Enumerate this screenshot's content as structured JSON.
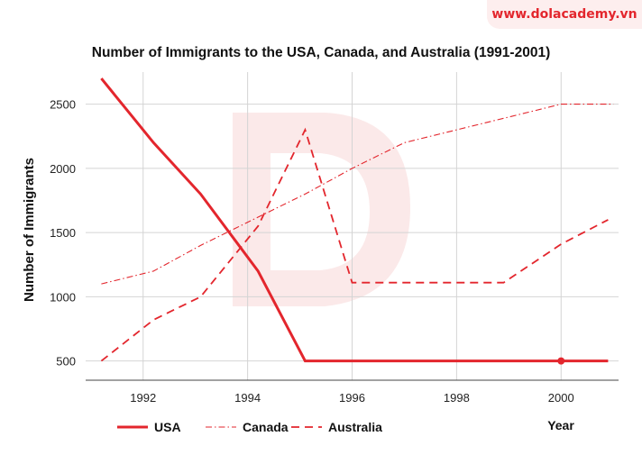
{
  "brand": "www.dolacademy.vn",
  "colors": {
    "series": "#e3262d",
    "grid": "#d4d4d4",
    "watermark": "#fbe9e9"
  },
  "chart_data": {
    "type": "line",
    "title": "Number of Immigrants to the USA, Canada, and Australia (1991-2001)",
    "xlabel": "Year",
    "ylabel": "Number of Immigrants",
    "x_ticks": [
      1992,
      1994,
      1996,
      1998,
      2000
    ],
    "y_ticks": [
      500,
      1000,
      1500,
      2000,
      2500
    ],
    "xlim": [
      1990.9,
      2001.1
    ],
    "ylim": [
      350,
      2750
    ],
    "grid": true,
    "legend": "bottom",
    "series": [
      {
        "name": "USA",
        "style": "solid",
        "x": [
          1991.2,
          1992.2,
          1993.1,
          1994.2,
          1995.1,
          2000,
          2000.9
        ],
        "y": [
          2700,
          2200,
          1800,
          1200,
          500,
          500,
          500
        ]
      },
      {
        "name": "Canada",
        "style": "dash-dot",
        "x": [
          1991.2,
          1992.2,
          1993.1,
          1994.2,
          1995.1,
          1996,
          1997,
          1998,
          1999,
          2000,
          2001
        ],
        "y": [
          1100,
          1200,
          1400,
          1620,
          1800,
          2000,
          2200,
          2300,
          2400,
          2500,
          2500
        ]
      },
      {
        "name": "Australia",
        "style": "dashed",
        "x": [
          1991.2,
          1992.2,
          1993.1,
          1994.2,
          1995.1,
          1996,
          1998.9,
          2000,
          2000.9
        ],
        "y": [
          500,
          820,
          1000,
          1550,
          2300,
          1110,
          1110,
          1410,
          1600
        ]
      }
    ],
    "markers": [
      {
        "series": "USA",
        "x": 2000,
        "y": 500
      }
    ]
  }
}
